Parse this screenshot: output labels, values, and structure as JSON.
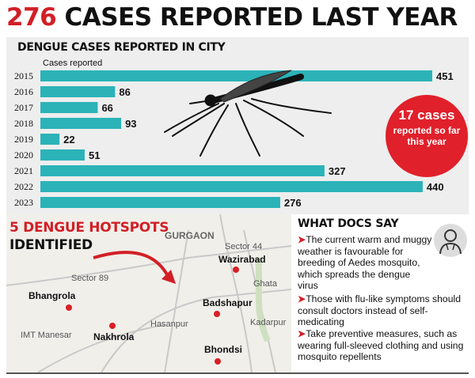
{
  "headline": {
    "number": "276",
    "text": "CASES REPORTED LAST YEAR"
  },
  "chart_data": {
    "type": "bar",
    "orientation": "horizontal",
    "title": "DENGUE CASES REPORTED IN CITY",
    "sublabel": "Cases reported",
    "categories": [
      "2015",
      "2016",
      "2017",
      "2018",
      "2019",
      "2020",
      "2021",
      "2022",
      "2023"
    ],
    "values": [
      451,
      86,
      66,
      93,
      22,
      51,
      327,
      440,
      276
    ],
    "bar_color": "#2bb3b8",
    "xlim": [
      0,
      451
    ]
  },
  "callout": {
    "big": "17 cases",
    "small": "reported so far this year",
    "color": "#e0202b"
  },
  "hotspots": {
    "title_red": "5 DENGUE HOTSPOTS",
    "title_black": "IDENTIFIED",
    "map_labels": {
      "gurgaon": "GURGAON",
      "sector44": "Sector 44",
      "sector89": "Sector 89",
      "ghata": "Ghata",
      "hasanpur": "Hasanpur",
      "imt": "IMT Manesar",
      "kadarpur": "Kadarpur"
    },
    "places": [
      "Wazirabad",
      "Bhangrola",
      "Badshapur",
      "Nakhrola",
      "Bhondsi"
    ]
  },
  "docs": {
    "title": "WHAT DOCS SAY",
    "tips": [
      "The current warm and muggy weather is favourable for breeding of Aedes mosquito, which spreads the dengue virus",
      "Those with flu-like symptoms should consult doctors instead of self-medicating",
      "Take preventive measures, such as wearing full-sleeved clothing and using mosquito repellents"
    ]
  }
}
